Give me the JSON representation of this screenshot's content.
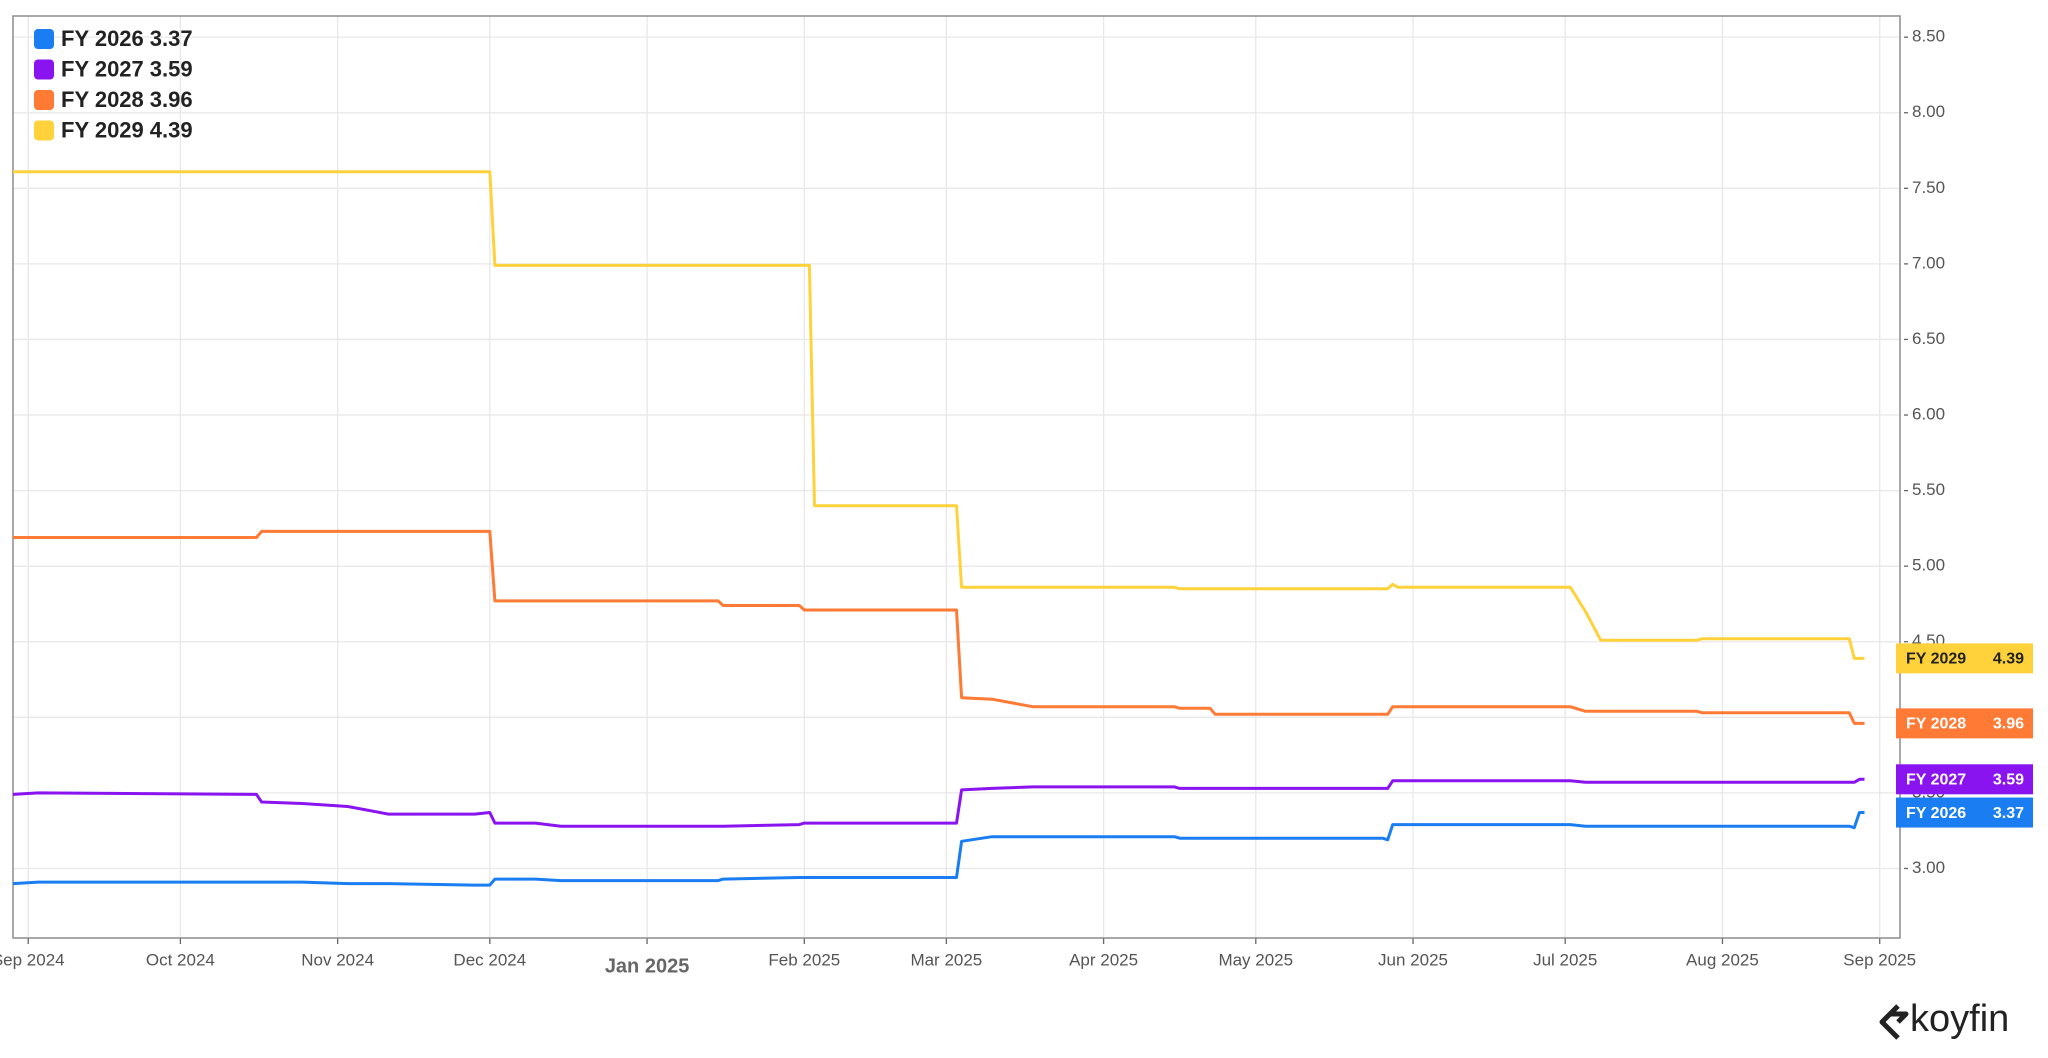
{
  "chart_data": {
    "type": "line",
    "watermark": "koyfin",
    "x": [
      "2024-08-29",
      "2024-09-03",
      "2024-10-16",
      "2024-10-17",
      "2024-10-25",
      "2024-11-03",
      "2024-11-11",
      "2024-11-28",
      "2024-12-01",
      "2024-12-02",
      "2024-12-10",
      "2024-12-15",
      "2025-01-15",
      "2025-01-16",
      "2025-01-31",
      "2025-02-01",
      "2025-02-02",
      "2025-02-03",
      "2025-03-03",
      "2025-03-04",
      "2025-03-10",
      "2025-03-18",
      "2025-04-15",
      "2025-04-16",
      "2025-04-22",
      "2025-04-23",
      "2025-05-26",
      "2025-05-27",
      "2025-05-28",
      "2025-05-29",
      "2025-07-02",
      "2025-07-05",
      "2025-07-08",
      "2025-07-27",
      "2025-07-28",
      "2025-08-26",
      "2025-08-27",
      "2025-08-28",
      "2025-08-29"
    ],
    "series": [
      {
        "name": "FY 2026",
        "color": "#1a7ef2",
        "values": [
          2.9,
          2.91,
          2.91,
          2.91,
          2.91,
          2.9,
          2.9,
          2.89,
          2.89,
          2.93,
          2.93,
          2.92,
          2.92,
          2.93,
          2.94,
          2.94,
          2.94,
          2.94,
          2.94,
          3.18,
          3.21,
          3.21,
          3.21,
          3.2,
          3.2,
          3.2,
          3.2,
          3.19,
          3.29,
          3.29,
          3.29,
          3.28,
          3.28,
          3.28,
          3.28,
          3.28,
          3.27,
          3.37,
          3.37
        ]
      },
      {
        "name": "FY 2027",
        "color": "#8a14ef",
        "values": [
          3.49,
          3.5,
          3.49,
          3.44,
          3.43,
          3.41,
          3.36,
          3.36,
          3.37,
          3.3,
          3.3,
          3.28,
          3.28,
          3.28,
          3.29,
          3.3,
          3.3,
          3.3,
          3.3,
          3.52,
          3.53,
          3.54,
          3.54,
          3.53,
          3.53,
          3.53,
          3.53,
          3.53,
          3.58,
          3.58,
          3.58,
          3.57,
          3.57,
          3.57,
          3.57,
          3.57,
          3.57,
          3.59,
          3.59
        ]
      },
      {
        "name": "FY 2028",
        "color": "#ff7a35",
        "values": [
          5.19,
          5.19,
          5.19,
          5.23,
          5.23,
          5.23,
          5.23,
          5.23,
          5.23,
          4.77,
          4.77,
          4.77,
          4.77,
          4.74,
          4.74,
          4.71,
          4.71,
          4.71,
          4.71,
          4.13,
          4.12,
          4.07,
          4.07,
          4.06,
          4.06,
          4.02,
          4.02,
          4.02,
          4.07,
          4.07,
          4.07,
          4.04,
          4.04,
          4.04,
          4.03,
          4.03,
          3.96,
          3.96,
          3.96
        ]
      },
      {
        "name": "FY 2029",
        "color": "#ffd23c",
        "values": [
          7.61,
          7.61,
          7.61,
          7.61,
          7.61,
          7.61,
          7.61,
          7.61,
          7.61,
          6.99,
          6.99,
          6.99,
          6.99,
          6.99,
          6.99,
          6.99,
          6.99,
          5.4,
          5.4,
          4.86,
          4.86,
          4.86,
          4.86,
          4.85,
          4.85,
          4.85,
          4.85,
          4.85,
          4.88,
          4.86,
          4.86,
          4.7,
          4.51,
          4.51,
          4.52,
          4.52,
          4.39,
          4.39,
          4.39
        ]
      }
    ],
    "xlim": [
      "2024-08-29",
      "2025-09-05"
    ],
    "xticks": [
      {
        "value": "2024-09-01",
        "label": "Sep 2024"
      },
      {
        "value": "2024-10-01",
        "label": "Oct 2024"
      },
      {
        "value": "2024-11-01",
        "label": "Nov 2024"
      },
      {
        "value": "2024-12-01",
        "label": "Dec 2024"
      },
      {
        "value": "2025-01-01",
        "label": "Jan 2025"
      },
      {
        "value": "2025-02-01",
        "label": "Feb 2025"
      },
      {
        "value": "2025-03-01",
        "label": "Mar 2025"
      },
      {
        "value": "2025-04-01",
        "label": "Apr 2025"
      },
      {
        "value": "2025-05-01",
        "label": "May 2025"
      },
      {
        "value": "2025-06-01",
        "label": "Jun 2025"
      },
      {
        "value": "2025-07-01",
        "label": "Jul 2025"
      },
      {
        "value": "2025-08-01",
        "label": "Aug 2025"
      },
      {
        "value": "2025-09-01",
        "label": "Sep 2025"
      }
    ],
    "ylim": [
      2.54,
      8.64
    ],
    "yticks": [
      {
        "value": 3,
        "label": "3.00"
      },
      {
        "value": 3.5,
        "label": "3.50"
      },
      {
        "value": 4,
        "label": "4.00"
      },
      {
        "value": 4.5,
        "label": "4.50"
      },
      {
        "value": 5,
        "label": "5.00"
      },
      {
        "value": 5.5,
        "label": "5.50"
      },
      {
        "value": 6,
        "label": "6.00"
      },
      {
        "value": 6.5,
        "label": "6.50"
      },
      {
        "value": 7,
        "label": "7.00"
      },
      {
        "value": 7.5,
        "label": "7.50"
      },
      {
        "value": 8,
        "label": "8.00"
      },
      {
        "value": 8.5,
        "label": "8.50"
      }
    ],
    "grid": true,
    "legend": "top-left"
  }
}
